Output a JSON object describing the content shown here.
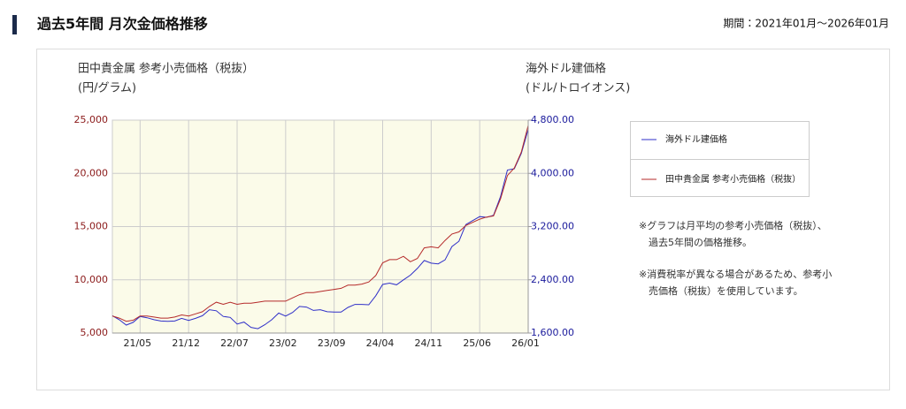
{
  "chart_data": {
    "type": "line",
    "title": "過去5年間 月次金価格推移",
    "period": "期間：2021年01月〜2026年01月",
    "ylabel": [
      "田中貴金属 参考小売価格（税抜）",
      "(円/グラム)"
    ],
    "y2label": [
      "海外ドル建価格",
      "(ドル/トロイオンス)"
    ],
    "categories": [
      null,
      null,
      null,
      null,
      "21/05",
      null,
      null,
      null,
      null,
      null,
      null,
      "21/12",
      null,
      null,
      null,
      null,
      null,
      null,
      "22/07",
      null,
      null,
      null,
      null,
      null,
      null,
      "23/02",
      null,
      null,
      null,
      null,
      null,
      null,
      "23/09",
      null,
      null,
      null,
      null,
      null,
      null,
      "24/04",
      null,
      null,
      null,
      null,
      null,
      null,
      "24/11",
      null,
      null,
      null,
      null,
      null,
      null,
      "25/06",
      null,
      null,
      null,
      null,
      null,
      null,
      "26/01"
    ],
    "series": [
      {
        "name": "海外ドル建価格",
        "color": "#2f2fc8",
        "axis": "y2",
        "values": [
          1860,
          1800,
          1720,
          1760,
          1850,
          1830,
          1800,
          1780,
          1775,
          1780,
          1820,
          1790,
          1820,
          1860,
          1950,
          1935,
          1850,
          1835,
          1735,
          1765,
          1685,
          1665,
          1725,
          1800,
          1900,
          1855,
          1910,
          2000,
          1990,
          1940,
          1950,
          1920,
          1915,
          1915,
          1985,
          2030,
          2030,
          2025,
          2160,
          2330,
          2350,
          2325,
          2400,
          2470,
          2570,
          2690,
          2650,
          2640,
          2700,
          2900,
          2980,
          3230,
          3290,
          3350,
          3340,
          3370,
          3650,
          4050,
          4070,
          4300,
          4660
        ]
      },
      {
        "name": "田中貴金属 参考小売価格（税抜）",
        "color": "#b52a2a",
        "values": [
          6600,
          6400,
          6100,
          6200,
          6600,
          6600,
          6500,
          6400,
          6400,
          6500,
          6700,
          6600,
          6800,
          7000,
          7500,
          7900,
          7700,
          7900,
          7700,
          7800,
          7800,
          7900,
          8000,
          8000,
          8000,
          8000,
          8300,
          8600,
          8800,
          8800,
          8900,
          9000,
          9100,
          9200,
          9500,
          9500,
          9600,
          9800,
          10400,
          11600,
          11900,
          11900,
          12200,
          11700,
          12000,
          13000,
          13100,
          13000,
          13700,
          14300,
          14500,
          15100,
          15400,
          15700,
          15900,
          16000,
          17600,
          19800,
          20500,
          22000,
          24500
        ]
      }
    ],
    "ylim": [
      5000,
      25000
    ],
    "yticks": [
      {
        "value": 5000,
        "label": "5,000"
      },
      {
        "value": 10000,
        "label": "10,000"
      },
      {
        "value": 15000,
        "label": "15,000"
      },
      {
        "value": 20000,
        "label": "20,000"
      },
      {
        "value": 25000,
        "label": "25,000"
      }
    ],
    "y2lim": [
      1600,
      4800
    ],
    "y2ticks": [
      {
        "value": 1600,
        "label": "1,600.00"
      },
      {
        "value": 2400,
        "label": "2,400.00"
      },
      {
        "value": 3200,
        "label": "3,200.00"
      },
      {
        "value": 4000,
        "label": "4,000.00"
      },
      {
        "value": 4800,
        "label": "4,800.00"
      }
    ],
    "yaxis_color": "#8b1a1a",
    "y2axis_color": "#1a1a9c",
    "plot_background": "#fbfbe9",
    "grid": true,
    "notes": [
      [
        "※グラフは月平均の参考小売価格（税抜）、",
        "過去5年間の価格推移。"
      ],
      [
        "※消費税率が異なる場合があるため、参考小",
        "売価格（税抜）を使用しています。"
      ]
    ]
  }
}
